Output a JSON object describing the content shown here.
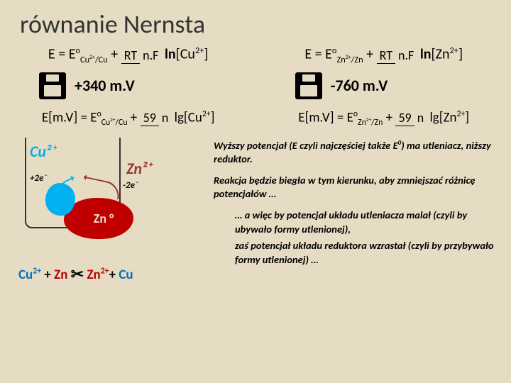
{
  "title": "równanie Nernsta",
  "equations": {
    "cu_primary_html": "E = E<sup>o</sup><sub>Cu<sup>2+</sup>/Cu</sub> + <span class='frac'><span class='top'>RT</span><span class='bot'>n.F</span></span> <b>ln</b>[Cu<sup>2+</sup>]",
    "zn_primary_html": "E = E<sup>o</sup><sub>Zn<sup>2+</sup>/Zn</sub> + <span class='frac'><span class='top'>RT</span><span class='bot'>n.F</span></span> <b>ln</b>[Zn<sup>2+</sup>]",
    "cu_mv": "+340 m.V",
    "zn_mv": "-760 m.V",
    "cu_secondary_html": "E[m.V] = E<sup>o</sup><sub>Cu<sup>2+</sup>/Cu</sub> + <span class='frac'><span class='top'>59</span><span class='bot'>n</span></span> lg[Cu<sup>2+</sup>]",
    "zn_secondary_html": "E[m.V] = E<sup>o</sup><sub>Zn<sup>2+</sup>/Zn</sub> + <span class='frac'><span class='top'>59</span><span class='bot'>n</span></span> lg[Zn<sup>2+</sup>]"
  },
  "diagram": {
    "cu_species": "Cu²⁺",
    "zn_species": "Zn²⁺",
    "plus2e": "+2e⁻",
    "minus2e": "-2e⁻",
    "zn_metal": "Zn °",
    "reaction_html": "<span class='cu'>Cu<sup>2+</sup></span> + <span class='zn'>Zn</span> <span class='arr'>✂</span> <span class='zn'>Zn<sup>2+</sup></span>+ <span class='cu'>Cu</span>",
    "colors": {
      "cu": "#00b0f0",
      "zn_ion": "#943634",
      "zn_metal": "#c00000"
    }
  },
  "text": {
    "t1_html": "Wyższy potencjał (E czyli najczęściej także E<sup>0</sup>) ma utleniacz, niższy reduktor.",
    "t2": "Reakcja będzie biegła w tym kierunku, aby zmniejszać różnicę potencjałów …",
    "t3": "… a więc by potencjał układu utleniacza malał (czyli by ubywało formy utlenionej),",
    "t4": "zaś potencjał układu reduktora wzrastał (czyli by przybywało formy utlenionej) …"
  },
  "colors": {
    "bg": "#e6dcc4"
  }
}
